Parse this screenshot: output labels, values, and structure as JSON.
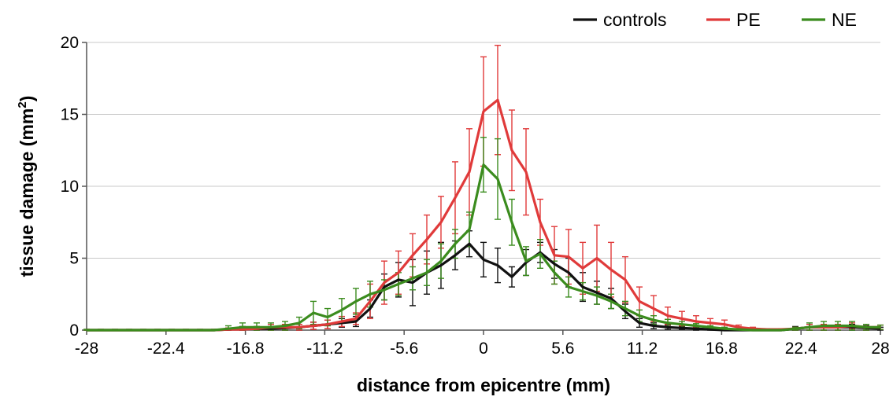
{
  "chart_data": {
    "type": "line",
    "title": "",
    "xlabel": "distance from epicentre (mm)",
    "ylabel_main": "tissue damage (mm",
    "ylabel_sup": "2",
    "ylabel_end": ")",
    "xlim": [
      -28,
      28
    ],
    "ylim": [
      0,
      20
    ],
    "xticks": [
      -28,
      -22.4,
      -16.8,
      -11.2,
      -5.6,
      0,
      5.6,
      11.2,
      16.8,
      22.4,
      28
    ],
    "xtick_labels": [
      "-28",
      "-22.4",
      "-16.8",
      "-11.2",
      "-5.6",
      "0",
      "5.6",
      "11.2",
      "16.8",
      "22.4",
      "28"
    ],
    "yticks": [
      0,
      5,
      10,
      15,
      20
    ],
    "ytick_labels": [
      "0",
      "5",
      "10",
      "15",
      "20"
    ],
    "grid": "horizontal",
    "legend_position": "top-right",
    "x": [
      -28,
      -27,
      -26,
      -25,
      -24,
      -23,
      -22,
      -21,
      -20,
      -19,
      -18,
      -17,
      -16,
      -15,
      -14,
      -13,
      -12,
      -11,
      -10,
      -9,
      -8,
      -7,
      -6,
      -5,
      -4,
      -3,
      -2,
      -1,
      0,
      1,
      2,
      3,
      4,
      5,
      6,
      7,
      8,
      9,
      10,
      11,
      12,
      13,
      14,
      15,
      16,
      17,
      18,
      19,
      20,
      21,
      22,
      23,
      24,
      25,
      26,
      27,
      28
    ],
    "series": [
      {
        "name": "controls",
        "color": "#111111",
        "values": [
          0,
          0,
          0,
          0,
          0,
          0,
          0,
          0,
          0,
          0,
          0.05,
          0.1,
          0.1,
          0.1,
          0.15,
          0.2,
          0.3,
          0.4,
          0.5,
          0.6,
          1.5,
          3.0,
          3.5,
          3.3,
          4.0,
          4.5,
          5.2,
          6.0,
          4.9,
          4.5,
          3.7,
          4.7,
          5.4,
          4.6,
          4.0,
          3.0,
          2.6,
          2.2,
          1.3,
          0.5,
          0.3,
          0.2,
          0.15,
          0.1,
          0.05,
          0,
          0,
          0,
          0,
          0,
          0.1,
          0.2,
          0.2,
          0.2,
          0.2,
          0.15,
          0.1
        ],
        "errors": [
          0.05,
          0.05,
          0.05,
          0.05,
          0.05,
          0.05,
          0.05,
          0.05,
          0.05,
          0.05,
          0.1,
          0.15,
          0.15,
          0.15,
          0.2,
          0.2,
          0.25,
          0.3,
          0.3,
          0.35,
          0.6,
          0.9,
          1.2,
          1.6,
          1.5,
          1.6,
          1.0,
          0.9,
          1.2,
          1.2,
          0.7,
          0.9,
          0.7,
          1.0,
          1.0,
          1.0,
          0.8,
          0.7,
          0.5,
          0.3,
          0.2,
          0.15,
          0.1,
          0.1,
          0.1,
          0.05,
          0.05,
          0.05,
          0.05,
          0.05,
          0.15,
          0.2,
          0.2,
          0.2,
          0.2,
          0.15,
          0.1
        ]
      },
      {
        "name": "PE",
        "color": "#e03a3a",
        "values": [
          0,
          0,
          0,
          0,
          0,
          0,
          0,
          0,
          0,
          0,
          0.05,
          0.05,
          0.1,
          0.2,
          0.2,
          0.2,
          0.3,
          0.4,
          0.6,
          0.8,
          2.0,
          3.3,
          4.0,
          5.2,
          6.3,
          7.5,
          9.2,
          11.0,
          15.2,
          16.0,
          12.5,
          11.0,
          7.5,
          5.2,
          5.1,
          4.3,
          5.0,
          4.2,
          3.5,
          2.0,
          1.5,
          1.0,
          0.8,
          0.6,
          0.5,
          0.4,
          0.2,
          0.1,
          0.05,
          0.05,
          0.1,
          0.2,
          0.2,
          0.2,
          0.3,
          0.2,
          0.2
        ],
        "errors": [
          0.05,
          0.05,
          0.05,
          0.05,
          0.05,
          0.05,
          0.05,
          0.05,
          0.05,
          0.05,
          0.1,
          0.1,
          0.15,
          0.2,
          0.2,
          0.2,
          0.25,
          0.3,
          0.35,
          0.4,
          1.2,
          1.5,
          1.5,
          1.5,
          1.7,
          1.8,
          2.5,
          3.0,
          3.8,
          3.8,
          2.8,
          3.0,
          1.6,
          2.0,
          1.9,
          1.8,
          2.3,
          1.9,
          1.6,
          1.0,
          0.9,
          0.6,
          0.5,
          0.4,
          0.3,
          0.3,
          0.15,
          0.1,
          0.05,
          0.05,
          0.1,
          0.2,
          0.2,
          0.2,
          0.2,
          0.2,
          0.15
        ]
      },
      {
        "name": "NE",
        "color": "#3b8c1e",
        "values": [
          0,
          0,
          0,
          0,
          0,
          0,
          0,
          0,
          0,
          0,
          0.1,
          0.2,
          0.2,
          0.2,
          0.3,
          0.5,
          1.2,
          0.9,
          1.4,
          2.0,
          2.5,
          2.8,
          3.2,
          3.6,
          4.0,
          4.8,
          6.0,
          7.0,
          11.5,
          10.5,
          7.5,
          4.8,
          5.3,
          4.0,
          3.0,
          2.7,
          2.4,
          2.0,
          1.5,
          1.0,
          0.7,
          0.5,
          0.4,
          0.3,
          0.2,
          0.1,
          0.05,
          0,
          0,
          0,
          0.1,
          0.2,
          0.3,
          0.3,
          0.3,
          0.2,
          0.2
        ],
        "errors": [
          0.05,
          0.05,
          0.05,
          0.05,
          0.05,
          0.05,
          0.05,
          0.05,
          0.05,
          0.05,
          0.2,
          0.3,
          0.3,
          0.3,
          0.3,
          0.4,
          0.8,
          0.6,
          0.8,
          0.9,
          0.9,
          0.7,
          0.8,
          0.8,
          0.9,
          1.2,
          1.0,
          1.2,
          1.9,
          2.8,
          1.6,
          1.0,
          1.0,
          0.8,
          0.7,
          0.6,
          0.6,
          0.5,
          0.5,
          0.4,
          0.3,
          0.25,
          0.2,
          0.15,
          0.1,
          0.1,
          0.05,
          0.05,
          0.05,
          0.05,
          0.1,
          0.3,
          0.3,
          0.3,
          0.3,
          0.2,
          0.15
        ]
      }
    ]
  }
}
